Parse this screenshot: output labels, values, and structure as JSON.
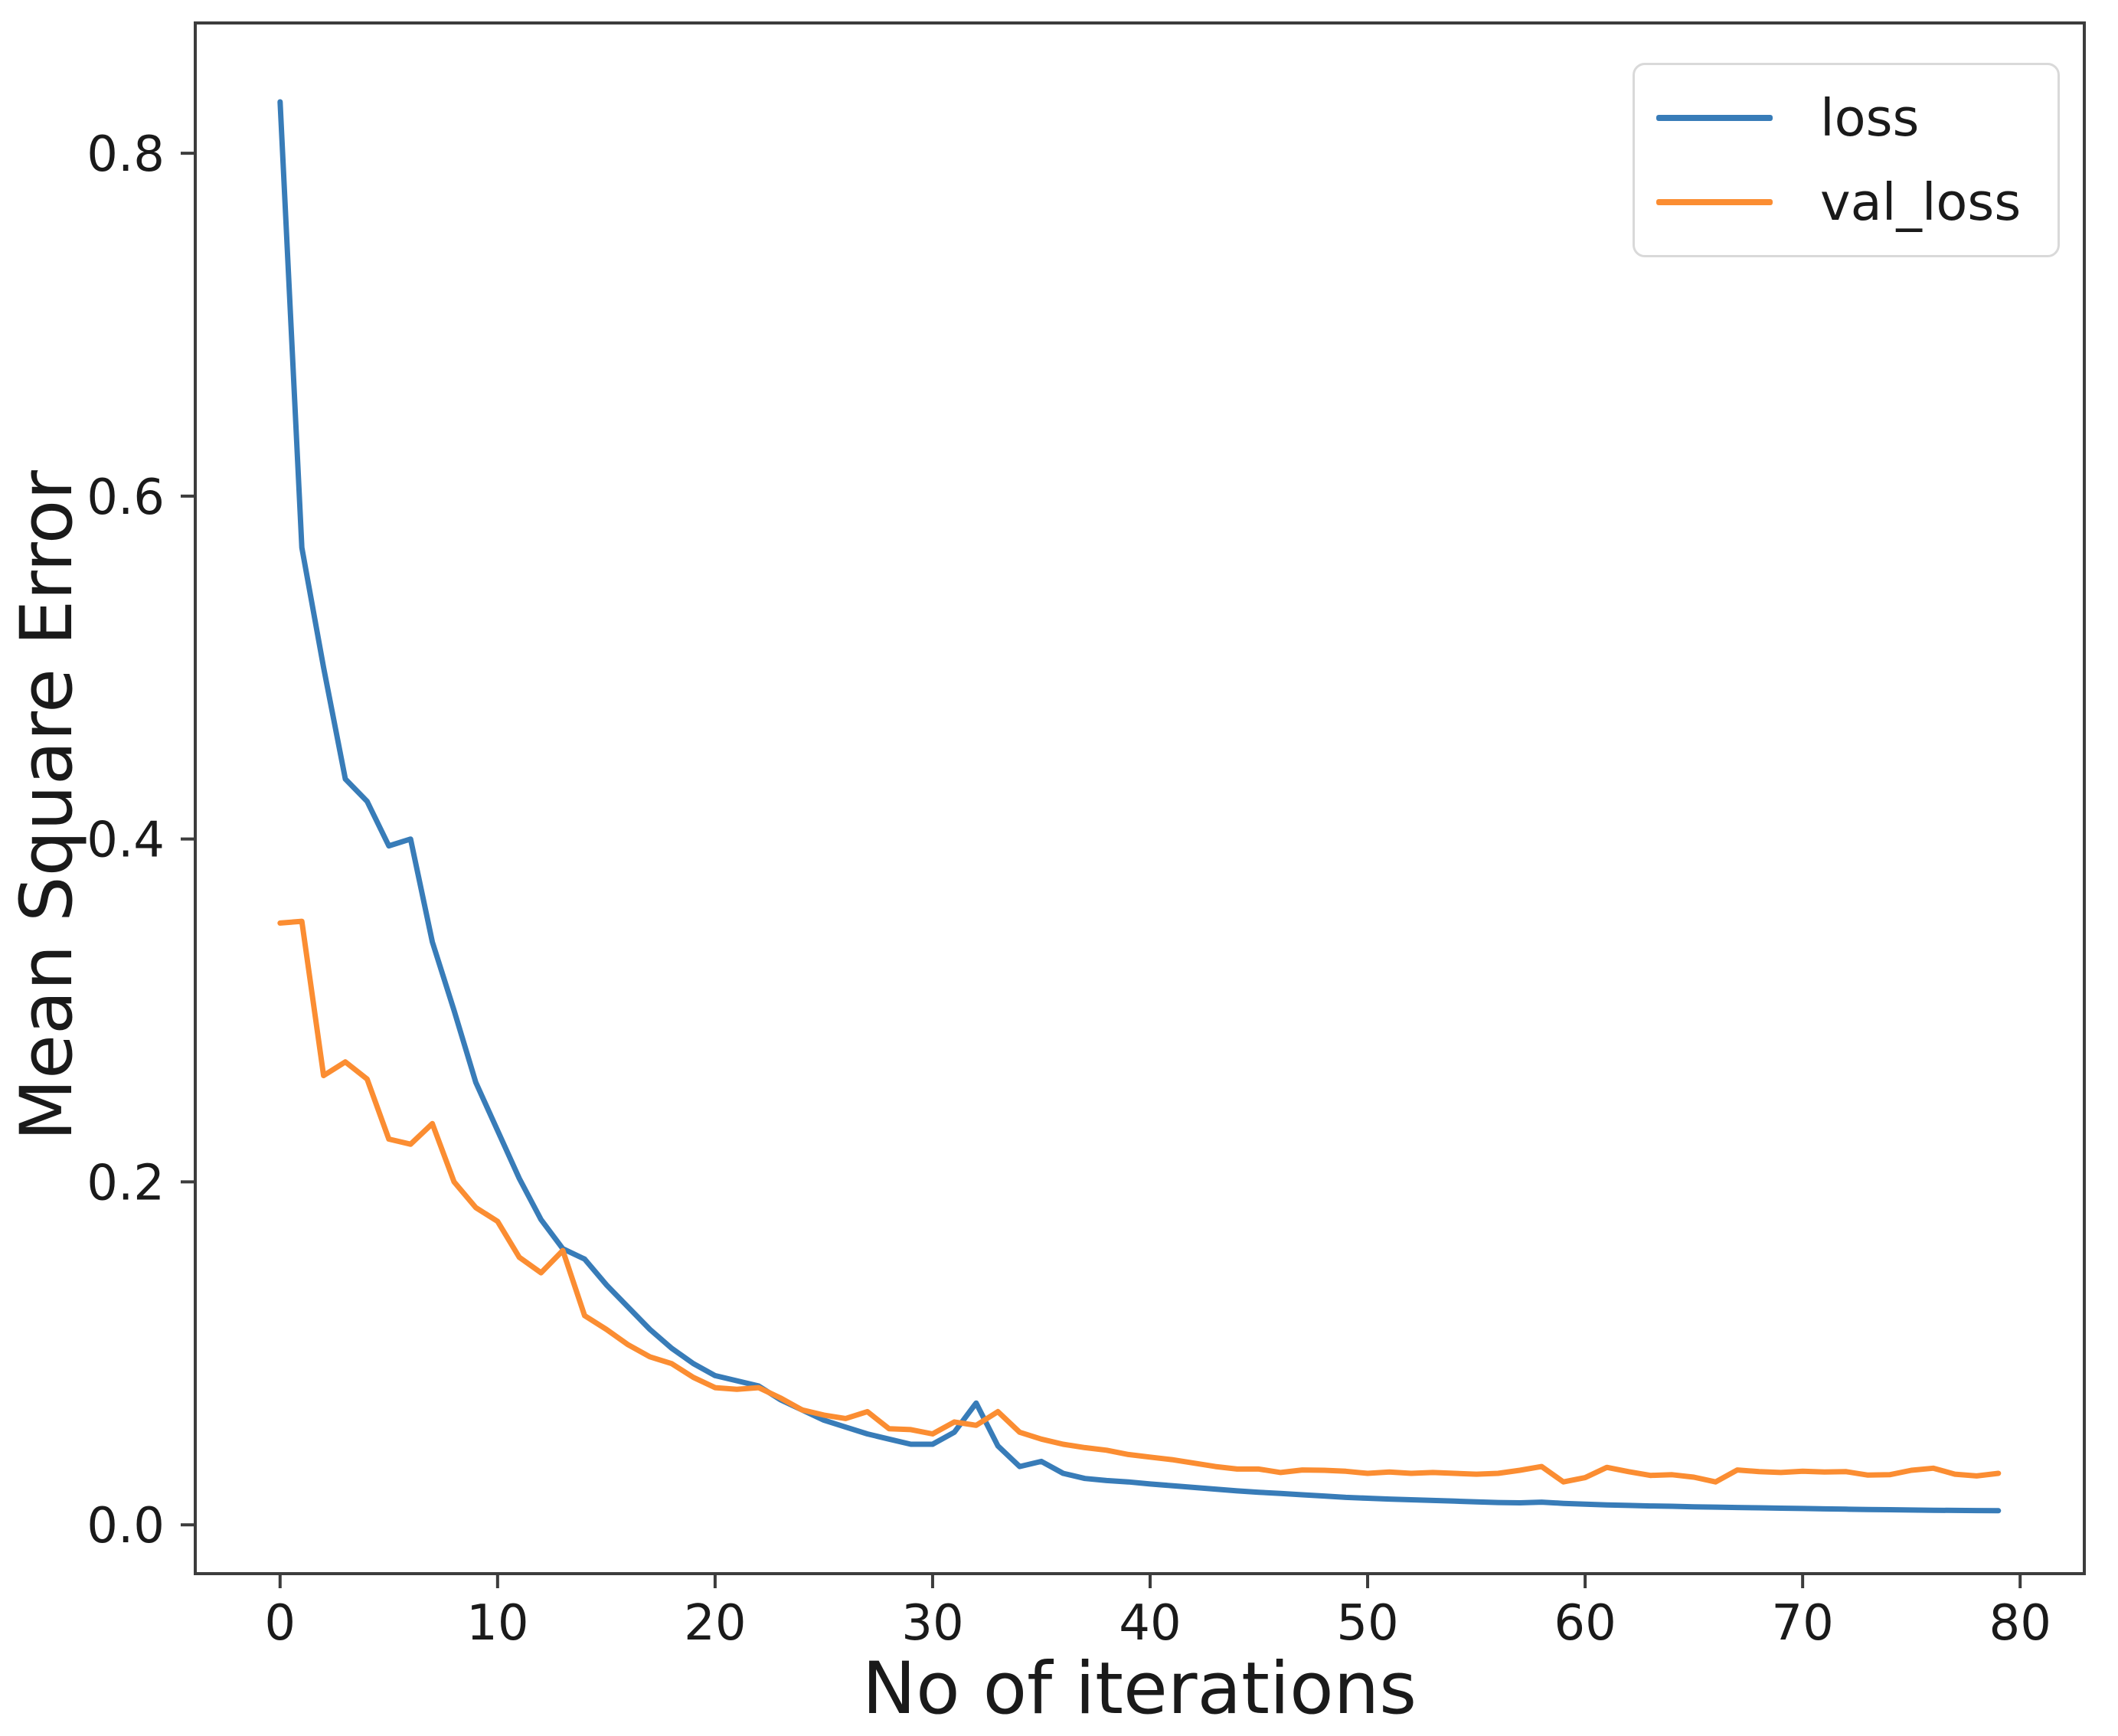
{
  "figure": {
    "background": "#ffffff",
    "spine_color": "#3c3c3c",
    "text_color": "#1a1a1a"
  },
  "legend": {
    "entries": [
      {
        "label": "loss",
        "color": "#387cb8"
      },
      {
        "label": "val_loss",
        "color": "#fb8d32"
      }
    ]
  },
  "chart_data": {
    "type": "line",
    "title": "",
    "xlabel": "No of iterations",
    "ylabel": "Mean Square Error",
    "grid": false,
    "legend_position": "upper right",
    "xlim": [
      -3.9,
      82.95
    ],
    "ylim": [
      -0.0285,
      0.876
    ],
    "xticks": [
      0,
      10,
      20,
      30,
      40,
      50,
      60,
      70,
      80
    ],
    "xtick_labels": [
      "0",
      "10",
      "20",
      "30",
      "40",
      "50",
      "60",
      "70",
      "80"
    ],
    "yticks": [
      0.0,
      0.2,
      0.4,
      0.6,
      0.8
    ],
    "ytick_labels": [
      "0.0",
      "0.2",
      "0.4",
      "0.6",
      "0.8"
    ],
    "x": [
      0,
      1,
      2,
      3,
      4,
      5,
      6,
      7,
      8,
      9,
      10,
      11,
      12,
      13,
      14,
      15,
      16,
      17,
      18,
      19,
      20,
      21,
      22,
      23,
      24,
      25,
      26,
      27,
      28,
      29,
      30,
      31,
      32,
      33,
      34,
      35,
      36,
      37,
      38,
      39,
      40,
      41,
      42,
      43,
      44,
      45,
      46,
      47,
      48,
      49,
      50,
      51,
      52,
      53,
      54,
      55,
      56,
      57,
      58,
      59,
      60,
      61,
      62,
      63,
      64,
      65,
      66,
      67,
      68,
      69,
      70,
      71,
      72,
      73,
      74,
      75,
      76,
      77,
      78,
      79
    ],
    "series": [
      {
        "name": "loss",
        "color": "#387cb8",
        "values": [
          0.83,
          0.57,
          0.5,
          0.435,
          0.422,
          0.396,
          0.4,
          0.34,
          0.3,
          0.258,
          0.23,
          0.202,
          0.178,
          0.161,
          0.155,
          0.14,
          0.127,
          0.114,
          0.103,
          0.094,
          0.087,
          0.084,
          0.081,
          0.073,
          0.067,
          0.061,
          0.057,
          0.053,
          0.05,
          0.047,
          0.047,
          0.054,
          0.071,
          0.046,
          0.034,
          0.037,
          0.03,
          0.027,
          0.0258,
          0.025,
          0.0238,
          0.0228,
          0.0218,
          0.0208,
          0.0198,
          0.019,
          0.0183,
          0.0175,
          0.0168,
          0.016,
          0.0155,
          0.015,
          0.0146,
          0.0142,
          0.0138,
          0.0134,
          0.013,
          0.0128,
          0.0132,
          0.0125,
          0.012,
          0.0116,
          0.0113,
          0.011,
          0.0108,
          0.0105,
          0.0103,
          0.0101,
          0.0099,
          0.0097,
          0.0095,
          0.0093,
          0.0091,
          0.0089,
          0.0088,
          0.0086,
          0.0085,
          0.0084,
          0.0083,
          0.0082
        ]
      },
      {
        "name": "val_loss",
        "color": "#fb8d32",
        "values": [
          0.351,
          0.352,
          0.262,
          0.27,
          0.26,
          0.225,
          0.222,
          0.234,
          0.2,
          0.185,
          0.177,
          0.156,
          0.147,
          0.16,
          0.122,
          0.114,
          0.105,
          0.098,
          0.094,
          0.086,
          0.08,
          0.079,
          0.08,
          0.074,
          0.067,
          0.064,
          0.062,
          0.066,
          0.056,
          0.0555,
          0.053,
          0.06,
          0.058,
          0.066,
          0.054,
          0.05,
          0.047,
          0.045,
          0.0435,
          0.041,
          0.0395,
          0.038,
          0.036,
          0.034,
          0.0325,
          0.0325,
          0.0305,
          0.032,
          0.0318,
          0.0312,
          0.03,
          0.0308,
          0.03,
          0.0305,
          0.03,
          0.0295,
          0.03,
          0.0318,
          0.034,
          0.025,
          0.0275,
          0.0335,
          0.031,
          0.0288,
          0.0292,
          0.0278,
          0.025,
          0.032,
          0.031,
          0.0305,
          0.0312,
          0.0308,
          0.031,
          0.029,
          0.0292,
          0.0318,
          0.033,
          0.0295,
          0.0285,
          0.03
        ]
      }
    ]
  }
}
